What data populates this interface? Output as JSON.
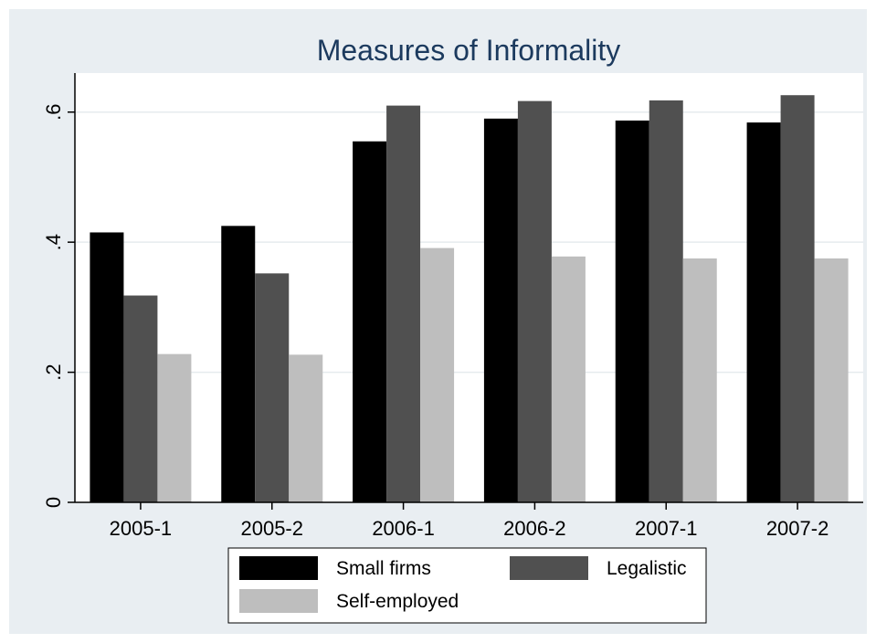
{
  "chart_data": {
    "type": "bar",
    "title": "Measures of Informality",
    "xlabel": "",
    "ylabel": "",
    "categories": [
      "2005-1",
      "2005-2",
      "2006-1",
      "2006-2",
      "2007-1",
      "2007-2"
    ],
    "series": [
      {
        "name": "Small firms",
        "values": [
          0.415,
          0.425,
          0.555,
          0.59,
          0.587,
          0.584
        ],
        "color": "#000000"
      },
      {
        "name": "Legalistic",
        "values": [
          0.318,
          0.352,
          0.61,
          0.617,
          0.618,
          0.626
        ],
        "color": "#505050"
      },
      {
        "name": "Self-employed",
        "values": [
          0.228,
          0.227,
          0.391,
          0.378,
          0.375,
          0.375
        ],
        "color": "#bebebe"
      }
    ],
    "ylim": [
      0,
      0.66
    ],
    "yticks": [
      0,
      0.2,
      0.4,
      0.6
    ],
    "ytick_labels": [
      "0",
      ".2",
      ".4",
      ".6"
    ],
    "grid": true,
    "legend_position": "bottom",
    "colors": {
      "outer_background": "#e9eef2",
      "plot_background": "#ffffff",
      "title": "#1c3a5e"
    }
  }
}
